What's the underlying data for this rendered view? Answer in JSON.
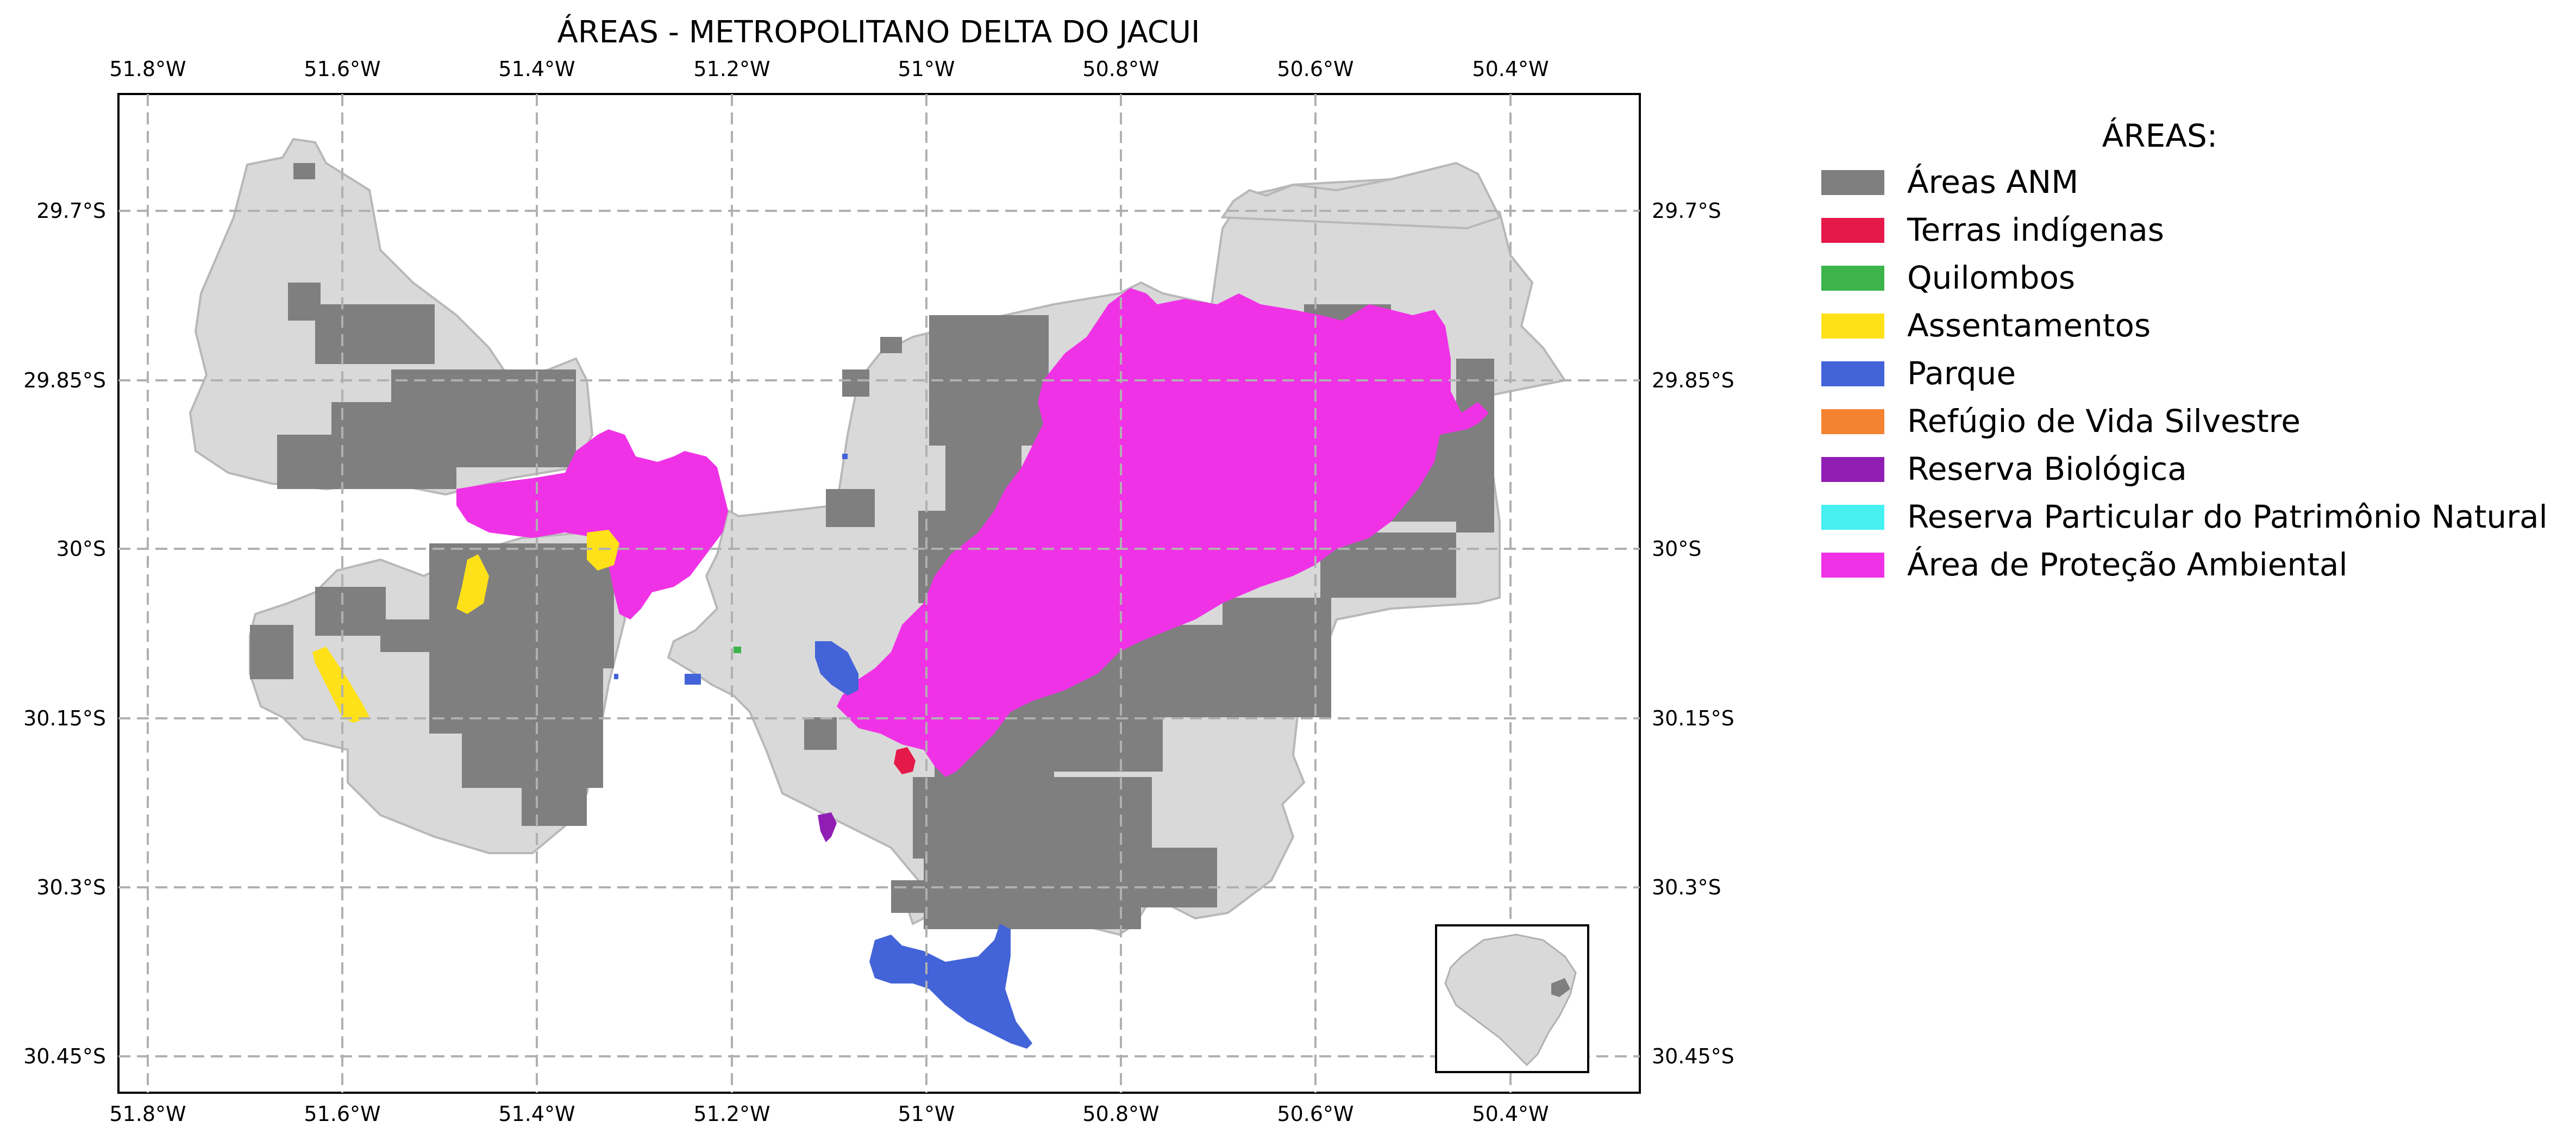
{
  "title": "ÁREAS - METROPOLITANO DELTA DO JACUI",
  "axes": {
    "x_ticks": [
      "51.8°W",
      "51.6°W",
      "51.4°W",
      "51.2°W",
      "51°W",
      "50.8°W",
      "50.6°W",
      "50.4°W"
    ],
    "y_ticks": [
      "29.7°S",
      "29.85°S",
      "30°S",
      "30.15°S",
      "30.3°S",
      "30.45°S"
    ],
    "x_values": [
      -51.8,
      -51.6,
      -51.4,
      -51.2,
      -51.0,
      -50.8,
      -50.6,
      -50.4
    ],
    "y_values": [
      -29.7,
      -29.85,
      -30.0,
      -30.15,
      -30.3,
      -30.45
    ],
    "grid": true
  },
  "legend": {
    "title": "ÁREAS:",
    "items": [
      {
        "label": "Áreas ANM",
        "color": "#7f7f7f"
      },
      {
        "label": "Terras indígenas",
        "color": "#e6194b"
      },
      {
        "label": "Quilombos",
        "color": "#3cb44b"
      },
      {
        "label": "Assentamentos",
        "color": "#ffe119"
      },
      {
        "label": "Parque",
        "color": "#4363d8"
      },
      {
        "label": "Refúgio de Vida Silvestre",
        "color": "#f58231"
      },
      {
        "label": "Reserva Biológica",
        "color": "#911eb4"
      },
      {
        "label": "Reserva Particular do Patrimônio Natural",
        "color": "#46f0f0"
      },
      {
        "label": "Área de Proteção Ambiental",
        "color": "#f032e6"
      }
    ]
  },
  "colors": {
    "region_fill": "#d9d9d9",
    "region_stroke": "#b8b8b8",
    "anm": "#7f7f7f",
    "apa": "#f032e6",
    "parque": "#4363d8",
    "assentamentos": "#ffe119",
    "terras_indigenas": "#e6194b",
    "quilombos": "#3cb44b",
    "reserva_biologica": "#911eb4"
  },
  "inset": {
    "label": "inset-map-rio-grande-do-sul"
  }
}
